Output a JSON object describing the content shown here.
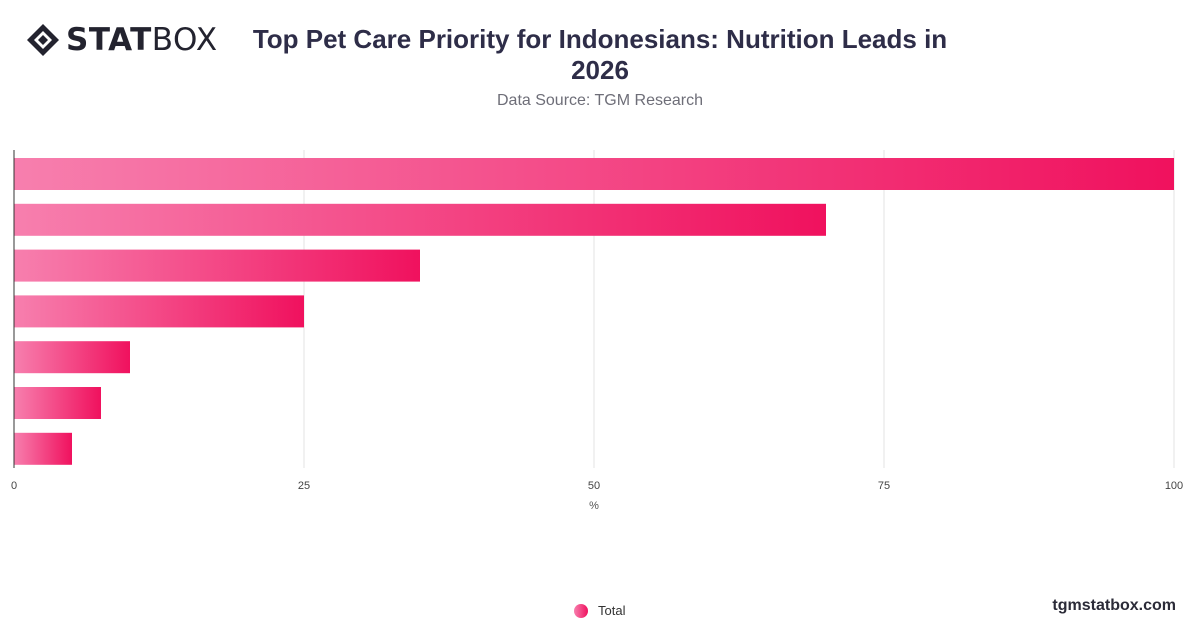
{
  "brand": {
    "logo_bold": "STAT",
    "logo_light": "BOX",
    "watermark": "tgmstatbox.com"
  },
  "header": {
    "title": "Top Pet Care Priority for Indonesians: Nutrition Leads in 2026",
    "subtitle": "Data Source: TGM Research"
  },
  "legend": {
    "label": "Total"
  },
  "colors": {
    "bar_start": "#f77fae",
    "bar_end": "#f0115e",
    "grid": "#e3e3e3",
    "axis": "#333333"
  },
  "chart_data": {
    "type": "bar",
    "orientation": "horizontal",
    "categories": [
      "",
      "",
      "",
      "",
      "",
      "",
      ""
    ],
    "series": [
      {
        "name": "Total",
        "values": [
          100,
          70,
          35,
          25,
          10,
          7.5,
          5
        ]
      }
    ],
    "xlabel": "%",
    "ylabel": "",
    "xlim": [
      0,
      100
    ],
    "xticks": [
      0,
      25,
      50,
      75,
      100
    ],
    "grid": true,
    "legend_position": "bottom-center"
  }
}
